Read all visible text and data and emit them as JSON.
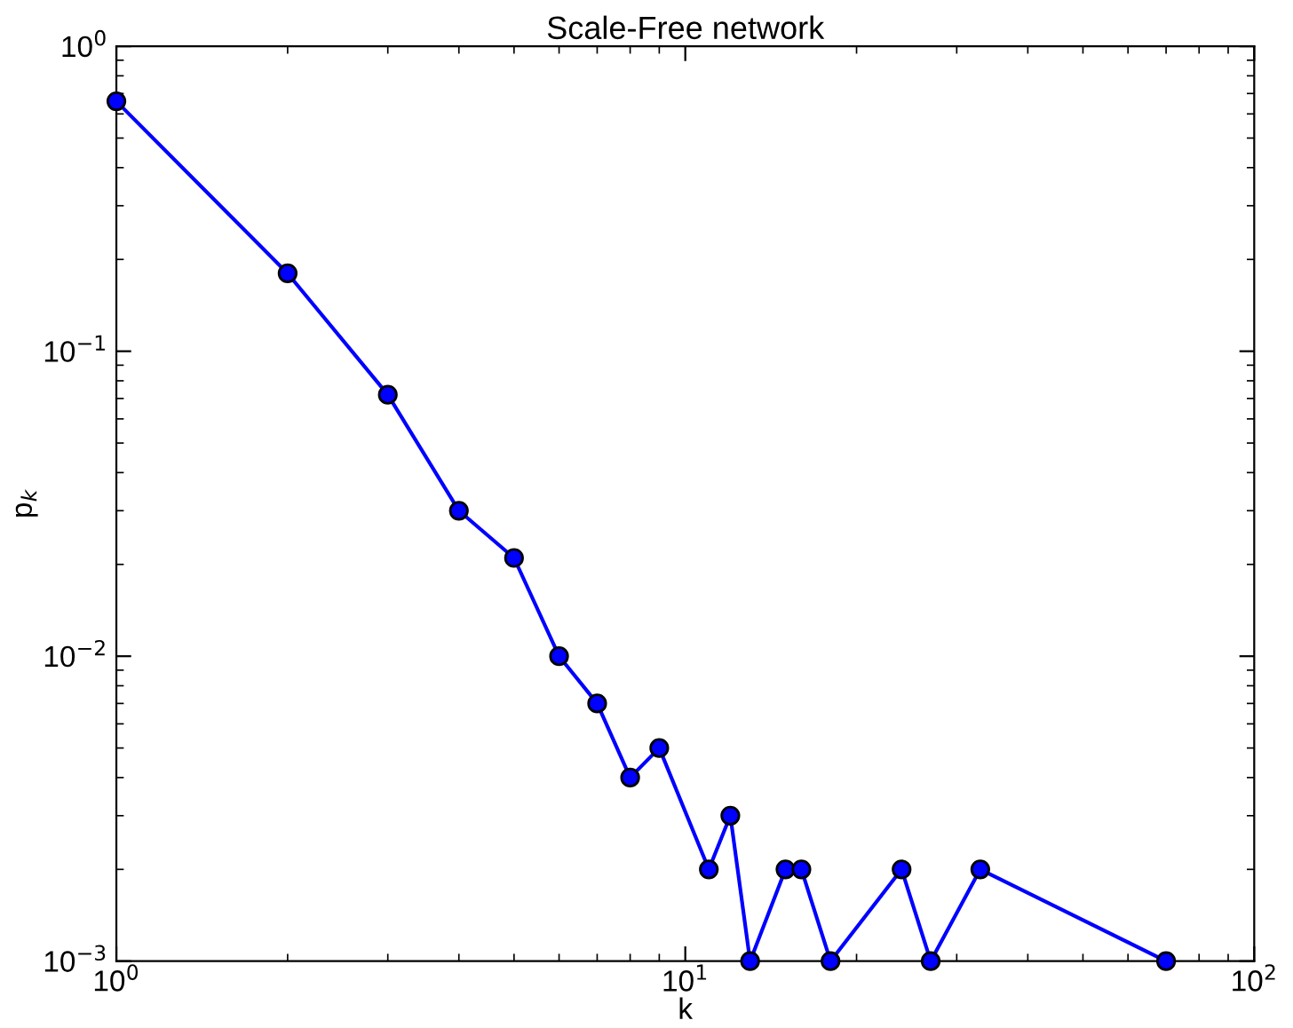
{
  "chart_data": {
    "type": "line",
    "title": "Scale-Free network",
    "xlabel": "k",
    "ylabel": "p$_{k}$",
    "log": "xy",
    "grid": false,
    "marker": "circle",
    "line_style": "solid",
    "xlim": [
      1,
      100
    ],
    "ylim": [
      0.001,
      1
    ],
    "xticks": [
      {
        "value": 1,
        "label": "10$^{0}$"
      },
      {
        "value": 10,
        "label": "10$^{1}$"
      },
      {
        "value": 100,
        "label": "10$^{2}$"
      }
    ],
    "yticks": [
      {
        "value": 0.001,
        "label": "10$^{−3}$"
      },
      {
        "value": 0.01,
        "label": "10$^{−2}$"
      },
      {
        "value": 0.1,
        "label": "10$^{−1}$"
      },
      {
        "value": 1,
        "label": "10$^{0}$"
      }
    ],
    "x": [
      1,
      2,
      3,
      4,
      5,
      6,
      7,
      8,
      9,
      11,
      12,
      13,
      15,
      16,
      18,
      24,
      27,
      33,
      70
    ],
    "series": [
      {
        "color": "#0000ff",
        "values": [
          0.66,
          0.18,
          0.072,
          0.03,
          0.021,
          0.01,
          0.007,
          0.004,
          0.005,
          0.002,
          0.003,
          0.001,
          0.002,
          0.002,
          0.001,
          0.002,
          0.001,
          0.002,
          0.001
        ]
      }
    ]
  }
}
